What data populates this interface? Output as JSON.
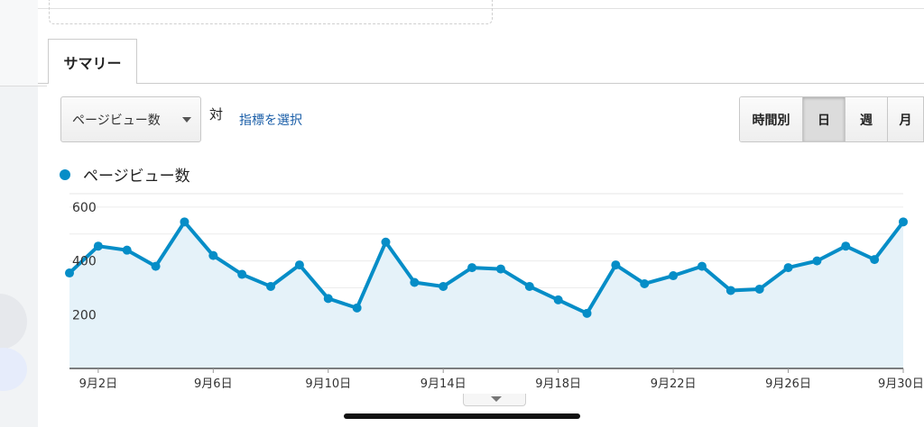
{
  "tabs": {
    "summary": "サマリー"
  },
  "controls": {
    "metric_select": "ページビュー数",
    "vs": "対",
    "choose_metric": "指標を選択",
    "periods": [
      "時間別",
      "日",
      "週",
      "月"
    ],
    "active_period": "日"
  },
  "legend": {
    "series_label": "ページビュー数"
  },
  "colors": {
    "accent": "#058dc7",
    "fill": "#e5f2f9",
    "link": "#1a5ea8"
  },
  "chart_data": {
    "type": "area",
    "series": [
      {
        "name": "ページビュー数",
        "x": [
          "9月1日",
          "9月2日",
          "9月3日",
          "9月4日",
          "9月5日",
          "9月6日",
          "9月7日",
          "9月8日",
          "9月9日",
          "9月10日",
          "9月11日",
          "9月12日",
          "9月13日",
          "9月14日",
          "9月15日",
          "9月16日",
          "9月17日",
          "9月18日",
          "9月19日",
          "9月20日",
          "9月21日",
          "9月22日",
          "9月23日",
          "9月24日",
          "9月25日",
          "9月26日",
          "9月27日",
          "9月28日",
          "9月29日",
          "9月30日"
        ],
        "values": [
          355,
          455,
          440,
          380,
          545,
          420,
          350,
          305,
          385,
          260,
          225,
          470,
          320,
          305,
          375,
          370,
          305,
          255,
          205,
          385,
          315,
          345,
          380,
          290,
          295,
          375,
          400,
          455,
          405,
          545
        ]
      }
    ],
    "ylim": [
      0,
      650
    ],
    "yticks": [
      200,
      400,
      600
    ],
    "xticks": [
      "9月2日",
      "9月6日",
      "9月10日",
      "9月14日",
      "9月18日",
      "9月22日",
      "9月26日",
      "9月30日"
    ],
    "grid": true
  }
}
